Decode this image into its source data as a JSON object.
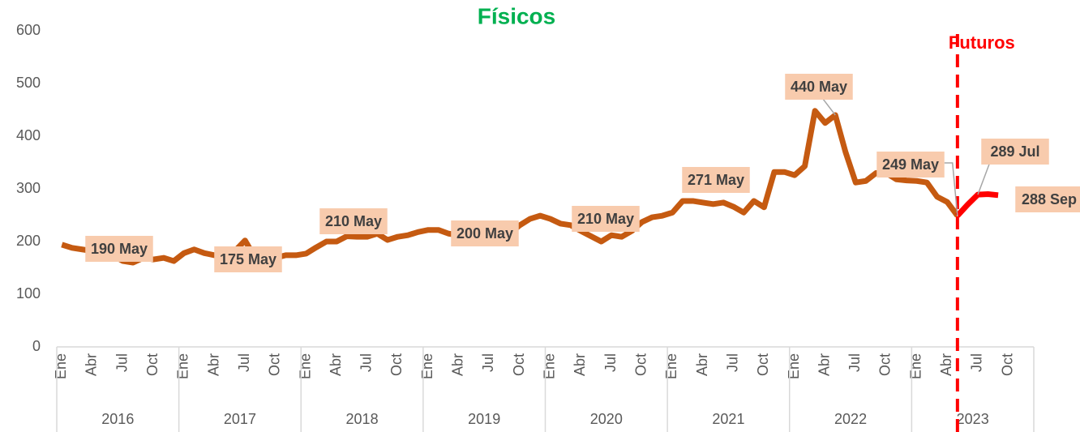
{
  "chart_data": {
    "type": "line",
    "title": "Físicos",
    "title_color": "#00b050",
    "divider_label": "Futuros",
    "divider_color": "#ff0000",
    "categories": [
      "Ene",
      null,
      null,
      "Abr",
      null,
      null,
      "Jul",
      null,
      null,
      "Oct",
      null,
      null,
      "Ene",
      null,
      null,
      "Abr",
      null,
      null,
      "Jul",
      null,
      null,
      "Oct",
      null,
      null,
      "Ene",
      null,
      null,
      "Abr",
      null,
      null,
      "Jul",
      null,
      null,
      "Oct",
      null,
      null,
      "Ene",
      null,
      null,
      "Abr",
      null,
      null,
      "Jul",
      null,
      null,
      "Oct",
      null,
      null,
      "Ene",
      null,
      null,
      "Abr",
      null,
      null,
      "Jul",
      null,
      null,
      "Oct",
      null,
      null,
      "Ene",
      null,
      null,
      "Abr",
      null,
      null,
      "Jul",
      null,
      null,
      "Oct",
      null,
      null,
      "Ene",
      null,
      null,
      "Abr",
      null,
      null,
      "Jul",
      null,
      null,
      "Oct",
      null,
      null,
      "Ene",
      null,
      null,
      "Abr",
      null,
      null,
      "Jul",
      null,
      null,
      "Oct",
      null,
      null
    ],
    "year_groups": [
      "2016",
      "2017",
      "2018",
      "2019",
      "2020",
      "2021",
      "2022",
      "2023"
    ],
    "series": [
      {
        "name": "Físicos",
        "color": "#c55a11",
        "values": [
          194,
          188,
          185,
          182,
          190,
          174,
          163,
          160,
          169,
          166,
          169,
          163,
          178,
          185,
          178,
          174,
          175,
          182,
          202,
          169,
          166,
          169,
          174,
          174,
          177,
          189,
          200,
          200,
          210,
          209,
          209,
          215,
          203,
          209,
          212,
          218,
          222,
          222,
          215,
          212,
          200,
          209,
          209,
          209,
          215,
          231,
          243,
          249,
          243,
          234,
          231,
          220,
          210,
          200,
          212,
          209,
          220,
          237,
          246,
          249,
          255,
          277,
          277,
          274,
          271,
          274,
          266,
          255,
          277,
          265,
          332,
          332,
          326,
          343,
          448,
          425,
          440,
          370,
          312,
          315,
          330,
          330,
          318,
          316,
          315,
          312,
          285,
          275,
          249,
          null,
          null,
          null,
          null,
          null,
          null,
          null
        ],
        "value_labels": [
          null,
          null,
          null,
          null,
          "190 May",
          null,
          null,
          null,
          null,
          null,
          null,
          null,
          null,
          null,
          null,
          null,
          "175 May",
          null,
          null,
          null,
          null,
          null,
          null,
          null,
          null,
          null,
          null,
          null,
          "210 May",
          null,
          null,
          null,
          null,
          null,
          null,
          null,
          null,
          null,
          null,
          null,
          "200 May",
          null,
          null,
          null,
          null,
          null,
          null,
          null,
          null,
          null,
          null,
          null,
          "210 May",
          null,
          null,
          null,
          null,
          null,
          null,
          null,
          null,
          null,
          null,
          null,
          "271 May",
          null,
          null,
          null,
          null,
          null,
          null,
          null,
          null,
          null,
          null,
          null,
          "440 May",
          null,
          null,
          null,
          null,
          null,
          null,
          null,
          null,
          null,
          null,
          null,
          "249 May",
          null,
          null,
          null,
          null,
          null,
          null,
          null
        ]
      },
      {
        "name": "Futuros",
        "color": "#ff0000",
        "values": [
          null,
          null,
          null,
          null,
          null,
          null,
          null,
          null,
          null,
          null,
          null,
          null,
          null,
          null,
          null,
          null,
          null,
          null,
          null,
          null,
          null,
          null,
          null,
          null,
          null,
          null,
          null,
          null,
          null,
          null,
          null,
          null,
          null,
          null,
          null,
          null,
          null,
          null,
          null,
          null,
          null,
          null,
          null,
          null,
          null,
          null,
          null,
          null,
          null,
          null,
          null,
          null,
          null,
          null,
          null,
          null,
          null,
          null,
          null,
          null,
          null,
          null,
          null,
          null,
          null,
          null,
          null,
          null,
          null,
          null,
          null,
          null,
          null,
          null,
          null,
          null,
          null,
          null,
          null,
          null,
          null,
          null,
          null,
          null,
          null,
          null,
          null,
          null,
          249,
          270,
          289,
          290,
          288,
          null,
          null,
          null
        ],
        "value_labels": [
          null,
          null,
          null,
          null,
          null,
          null,
          null,
          null,
          null,
          null,
          null,
          null,
          null,
          null,
          null,
          null,
          null,
          null,
          null,
          null,
          null,
          null,
          null,
          null,
          null,
          null,
          null,
          null,
          null,
          null,
          null,
          null,
          null,
          null,
          null,
          null,
          null,
          null,
          null,
          null,
          null,
          null,
          null,
          null,
          null,
          null,
          null,
          null,
          null,
          null,
          null,
          null,
          null,
          null,
          null,
          null,
          null,
          null,
          null,
          null,
          null,
          null,
          null,
          null,
          null,
          null,
          null,
          null,
          null,
          null,
          null,
          null,
          null,
          null,
          null,
          null,
          null,
          null,
          null,
          null,
          null,
          null,
          null,
          null,
          null,
          null,
          null,
          null,
          null,
          null,
          "289 Jul",
          null,
          "288 Sep",
          null,
          null,
          null
        ]
      }
    ],
    "ylim": [
      0,
      600
    ],
    "yticks": [
      0,
      100,
      200,
      300,
      400,
      500,
      600
    ],
    "label_box_color": "#f8cbad",
    "grid": false
  }
}
